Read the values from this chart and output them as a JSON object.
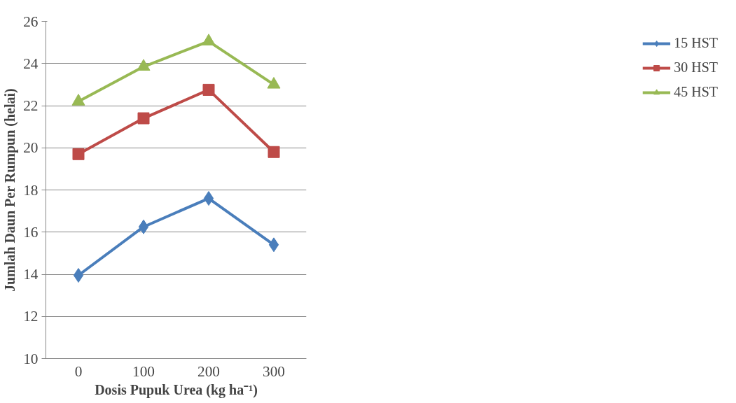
{
  "chart_data": {
    "type": "line",
    "xlabel": "Dosis Pupuk Urea (kg ha⁻¹)",
    "ylabel": "Jumlah Daun Per Rumpun (helai)",
    "categories": [
      "0",
      "100",
      "200",
      "300"
    ],
    "series": [
      {
        "name": "15 HST",
        "color": "#4a7ebb",
        "marker": "diamond",
        "values": [
          13.95,
          16.25,
          17.6,
          15.4
        ]
      },
      {
        "name": "30 HST",
        "color": "#be4b48",
        "marker": "square",
        "values": [
          19.7,
          21.4,
          22.75,
          19.8
        ]
      },
      {
        "name": "45 HST",
        "color": "#98b954",
        "marker": "triangle",
        "values": [
          22.2,
          23.85,
          25.05,
          23.0
        ]
      }
    ],
    "ylim": [
      10,
      26
    ],
    "yticks": [
      10,
      12,
      14,
      16,
      18,
      20,
      22,
      24,
      26
    ],
    "grid": "y",
    "legend": "right"
  }
}
